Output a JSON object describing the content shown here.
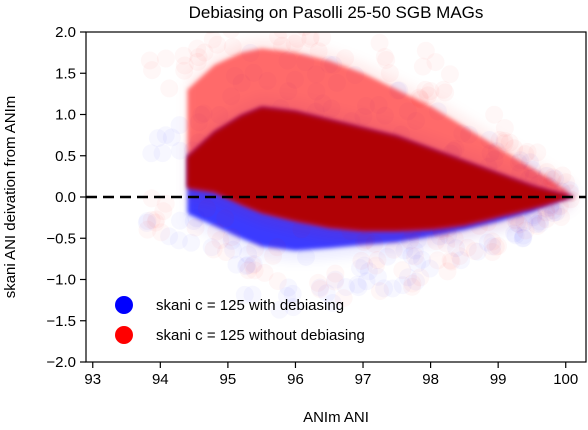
{
  "chart_data": {
    "type": "scatter",
    "title": "Debiasing on Pasolli 25-50 SGB MAGs",
    "xlabel": "ANIm ANI",
    "ylabel": "skani ANI deivation from ANIm",
    "xlim": [
      92.9,
      100.3
    ],
    "ylim": [
      -2.0,
      2.0
    ],
    "x_ticks": [
      93,
      94,
      95,
      96,
      97,
      98,
      99,
      100
    ],
    "y_ticks": [
      -2.0,
      -1.5,
      -1.0,
      -0.5,
      0.0,
      0.5,
      1.0,
      1.5,
      2.0
    ],
    "x_tick_labels": [
      "93",
      "94",
      "95",
      "96",
      "97",
      "98",
      "99",
      "100"
    ],
    "y_tick_labels": [
      "−2.0",
      "−1.5",
      "−1.0",
      "−0.5",
      "0.0",
      "0.5",
      "1.0",
      "1.5",
      "2.0"
    ],
    "reference_line": {
      "y": 0.0,
      "style": "dashed",
      "color": "#000000"
    },
    "legend_position": "lower-left",
    "series": [
      {
        "name": "skani c = 125 with debiasing",
        "color": "#0000ff",
        "envelope": {
          "x": [
            94.4,
            94.8,
            95.2,
            95.5,
            96.0,
            96.5,
            97.0,
            97.5,
            98.0,
            98.5,
            99.0,
            99.5,
            99.8,
            100.0,
            100.1
          ],
          "upper": [
            0.5,
            0.8,
            1.0,
            1.1,
            1.05,
            0.95,
            0.85,
            0.75,
            0.6,
            0.45,
            0.3,
            0.15,
            0.08,
            0.04,
            0.0
          ],
          "lower": [
            -0.2,
            -0.35,
            -0.5,
            -0.6,
            -0.65,
            -0.62,
            -0.58,
            -0.55,
            -0.48,
            -0.4,
            -0.3,
            -0.18,
            -0.08,
            -0.03,
            0.0
          ]
        }
      },
      {
        "name": "skani c = 125 without debiasing",
        "color": "#ff0000",
        "envelope": {
          "x": [
            94.4,
            94.8,
            95.2,
            95.5,
            96.0,
            96.5,
            97.0,
            97.5,
            98.0,
            98.5,
            99.0,
            99.5,
            99.8,
            100.0,
            100.1
          ],
          "upper": [
            1.3,
            1.6,
            1.75,
            1.8,
            1.75,
            1.65,
            1.5,
            1.3,
            1.1,
            0.85,
            0.6,
            0.35,
            0.2,
            0.08,
            0.0
          ],
          "lower": [
            0.1,
            0.05,
            -0.1,
            -0.2,
            -0.3,
            -0.38,
            -0.42,
            -0.42,
            -0.4,
            -0.35,
            -0.25,
            -0.15,
            -0.08,
            -0.03,
            0.0
          ]
        }
      }
    ]
  }
}
